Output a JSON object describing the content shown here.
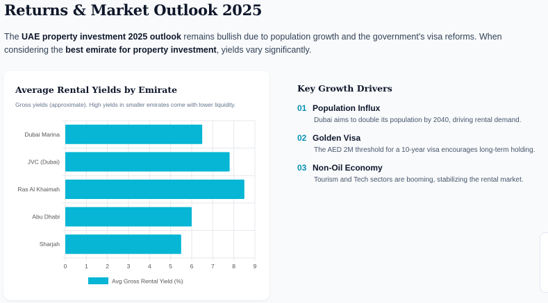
{
  "header": {
    "title": "Returns & Market Outlook 2025"
  },
  "intro": {
    "p1": "The ",
    "b1": "UAE property investment 2025 outlook",
    "p2": " remains bullish due to population growth and the government's visa reforms. When considering the ",
    "b2": "best emirate for property investment",
    "p3": ", yields vary significantly."
  },
  "card": {
    "title": "Average Rental Yields by Emirate",
    "subtitle": "Gross yields (approximate). High yields in smaller emirates come with lower liquidity."
  },
  "chart_data": {
    "type": "bar",
    "orientation": "horizontal",
    "categories": [
      "Dubai Marina",
      "JVC (Dubai)",
      "Ras Al Khaimah",
      "Abu Dhabi",
      "Sharjah"
    ],
    "series": [
      {
        "name": "Avg Gross Rental Yield (%)",
        "values": [
          6.5,
          7.8,
          8.5,
          6.0,
          5.5
        ]
      }
    ],
    "xlim": [
      0,
      9
    ],
    "xticks": [
      "0",
      "1",
      "2",
      "3",
      "4",
      "5",
      "6",
      "7",
      "8",
      "9"
    ],
    "grid": true,
    "legend": "bottom",
    "color": "#06b6d4"
  },
  "drivers": {
    "title": "Key Growth Drivers",
    "items": [
      {
        "num": "01",
        "title": "Population Influx",
        "desc": "Dubai aims to double its population by 2040, driving rental demand."
      },
      {
        "num": "02",
        "title": "Golden Visa",
        "desc": "The AED 2M threshold for a 10-year visa encourages long-term holding."
      },
      {
        "num": "03",
        "title": "Non-Oil Economy",
        "desc": "Tourism and Tech sectors are booming, stabilizing the rental market."
      }
    ]
  }
}
